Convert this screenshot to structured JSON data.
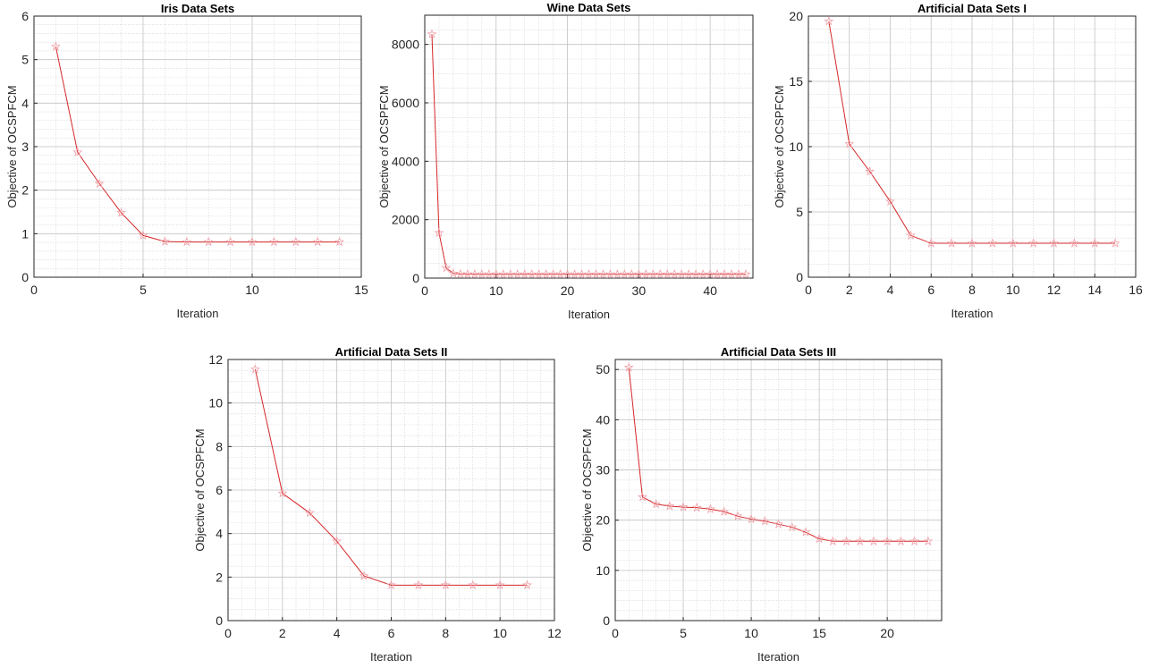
{
  "chart_data": [
    {
      "type": "line",
      "title": "Iris Data Sets",
      "xlabel": "Iteration",
      "ylabel": "Objective of OCSPFCM",
      "xlim": [
        0,
        15
      ],
      "ylim": [
        0,
        6
      ],
      "xticks": [
        0,
        5,
        10,
        15
      ],
      "yticks": [
        0,
        1,
        2,
        3,
        4,
        5,
        6
      ],
      "xminor": 1,
      "yminor": 0.2,
      "grid": true,
      "marker": "star",
      "color": "#d62728",
      "x": [
        1,
        2,
        3,
        4,
        5,
        6,
        7,
        8,
        9,
        10,
        11,
        12,
        13,
        14
      ],
      "y": [
        5.3,
        2.87,
        2.15,
        1.48,
        0.96,
        0.82,
        0.81,
        0.81,
        0.81,
        0.81,
        0.81,
        0.81,
        0.81,
        0.81
      ]
    },
    {
      "type": "line",
      "title": "Wine Data Sets",
      "xlabel": "Iteration",
      "ylabel": "Objective of OCSPFCM",
      "xlim": [
        0,
        46
      ],
      "ylim": [
        0,
        9000
      ],
      "xticks": [
        0,
        10,
        20,
        30,
        40
      ],
      "yticks": [
        0,
        2000,
        4000,
        6000,
        8000
      ],
      "xminor": 2,
      "yminor": 500,
      "grid": true,
      "marker": "star",
      "color": "#d62728",
      "x": [
        1,
        2,
        3,
        4,
        5,
        6,
        7,
        8,
        9,
        10,
        11,
        12,
        13,
        14,
        15,
        16,
        17,
        18,
        19,
        20,
        21,
        22,
        23,
        24,
        25,
        26,
        27,
        28,
        29,
        30,
        31,
        32,
        33,
        34,
        35,
        36,
        37,
        38,
        39,
        40,
        41,
        42,
        43,
        44,
        45
      ],
      "y": [
        8350,
        1550,
        350,
        160,
        140,
        135,
        133,
        132,
        132,
        131,
        131,
        131,
        131,
        131,
        131,
        131,
        131,
        131,
        131,
        131,
        131,
        131,
        131,
        131,
        131,
        131,
        131,
        131,
        131,
        131,
        131,
        131,
        131,
        131,
        131,
        131,
        131,
        131,
        131,
        131,
        131,
        131,
        131,
        131,
        131
      ]
    },
    {
      "type": "line",
      "title": "Artificial Data Sets I",
      "xlabel": "Iteration",
      "ylabel": "Objective of OCSPFCM",
      "xlim": [
        0,
        16
      ],
      "ylim": [
        0,
        20
      ],
      "xticks": [
        0,
        2,
        4,
        6,
        8,
        10,
        12,
        14,
        16
      ],
      "yticks": [
        0,
        5,
        10,
        15,
        20
      ],
      "xminor": 1,
      "yminor": 1,
      "grid": true,
      "marker": "star",
      "color": "#d62728",
      "x": [
        1,
        2,
        3,
        4,
        5,
        6,
        7,
        8,
        9,
        10,
        11,
        12,
        13,
        14,
        15
      ],
      "y": [
        19.6,
        10.2,
        8.1,
        5.8,
        3.2,
        2.6,
        2.6,
        2.6,
        2.6,
        2.6,
        2.6,
        2.6,
        2.6,
        2.6,
        2.6
      ]
    },
    {
      "type": "line",
      "title": "Artificial Data Sets II",
      "xlabel": "Iteration",
      "ylabel": "Objective of OCSPFCM",
      "xlim": [
        0,
        12
      ],
      "ylim": [
        0,
        12
      ],
      "xticks": [
        0,
        2,
        4,
        6,
        8,
        10,
        12
      ],
      "yticks": [
        0,
        2,
        4,
        6,
        8,
        10,
        12
      ],
      "xminor": 0.5,
      "yminor": 0.5,
      "grid": true,
      "marker": "star",
      "color": "#d62728",
      "x": [
        1,
        2,
        3,
        4,
        5,
        6,
        7,
        8,
        9,
        10,
        11
      ],
      "y": [
        11.55,
        5.85,
        4.95,
        3.65,
        2.05,
        1.63,
        1.63,
        1.63,
        1.63,
        1.63,
        1.63
      ]
    },
    {
      "type": "line",
      "title": "Artificial Data Sets III",
      "xlabel": "Iteration",
      "ylabel": "Objective of OCSPFCM",
      "xlim": [
        0,
        24
      ],
      "ylim": [
        0,
        52
      ],
      "xticks": [
        0,
        5,
        10,
        15,
        20
      ],
      "yticks": [
        0,
        10,
        20,
        30,
        40,
        50
      ],
      "xminor": 1,
      "yminor": 2,
      "grid": true,
      "marker": "star",
      "color": "#d62728",
      "x": [
        1,
        2,
        3,
        4,
        5,
        6,
        7,
        8,
        9,
        10,
        11,
        12,
        13,
        14,
        15,
        16,
        17,
        18,
        19,
        20,
        21,
        22,
        23
      ],
      "y": [
        50.4,
        24.6,
        23.2,
        22.8,
        22.6,
        22.5,
        22.2,
        21.7,
        20.8,
        20.2,
        19.8,
        19.2,
        18.6,
        17.6,
        16.3,
        15.8,
        15.8,
        15.8,
        15.8,
        15.8,
        15.8,
        15.8,
        15.8
      ]
    }
  ]
}
